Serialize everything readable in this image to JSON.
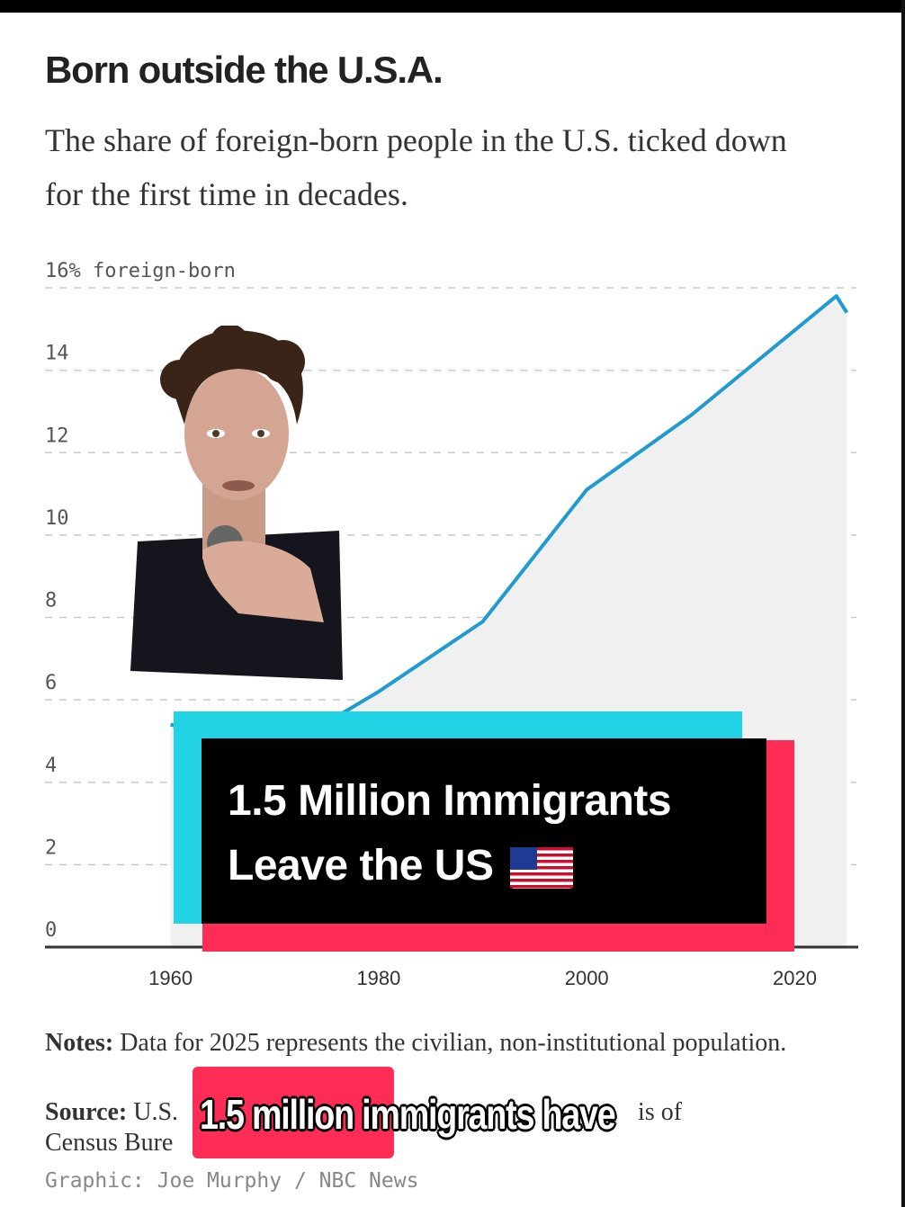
{
  "header": {
    "title": "Born outside the U.S.A.",
    "subtitle": "The share of foreign-born people in the U.S. ticked down for the first time in decades."
  },
  "chart_data": {
    "type": "area",
    "ylabel": "foreign-born",
    "y_ticks": [
      "16% foreign-born",
      "14",
      "12",
      "10",
      "8",
      "6",
      "4",
      "2",
      "0"
    ],
    "x_ticks": [
      "1960",
      "1980",
      "2000",
      "2020"
    ],
    "ylim": [
      0,
      16
    ],
    "xlim": [
      1950,
      2028
    ],
    "grid": true,
    "series": [
      {
        "x": [
          1960,
          1970,
          1980,
          1990,
          2000,
          2010,
          2024,
          2025
        ],
        "values": [
          5.4,
          4.7,
          6.2,
          7.9,
          11.1,
          12.9,
          15.8,
          15.4
        ]
      }
    ],
    "colors": {
      "line": "#1f9bcf",
      "area": "#f0f0f0",
      "grid": "#c9c9c9",
      "axis": "#333333"
    }
  },
  "notes": {
    "notes_label": "Notes:",
    "notes_text": "Data for 2025 represents the civilian, non-institutional population.",
    "source_label": "Source:",
    "source_text_a": "U.S.",
    "source_text_b": "is of",
    "source_text_c": "Census Bure",
    "credit": "Graphic: Joe Murphy / NBC News"
  },
  "overlay": {
    "caption_line1": "1.5 Million Immigrants",
    "caption_line2": "Leave the US",
    "flag_icon": "us-flag-icon",
    "subtitle_caption": "1.5 million immigrants have",
    "colors": {
      "cyan": "#22d3e6",
      "red": "#ff2d55",
      "black": "#000000"
    }
  }
}
